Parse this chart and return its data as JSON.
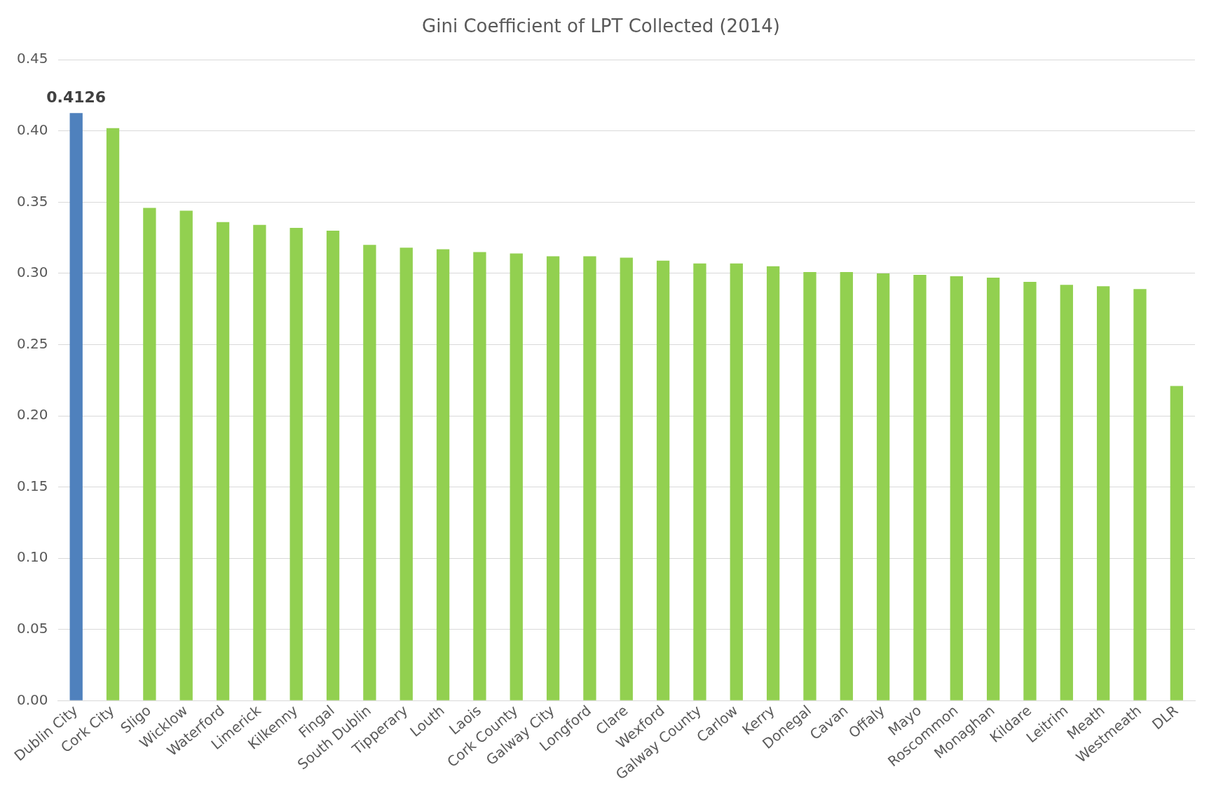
{
  "chart_data": {
    "type": "bar",
    "title": "Gini Coefficient of LPT Collected (2014)",
    "categories": [
      "Dublin City",
      "Cork City",
      "Sligo",
      "Wicklow",
      "Waterford",
      "Limerick",
      "Kilkenny",
      "Fingal",
      "South Dublin",
      "Tipperary",
      "Louth",
      "Laois",
      "Cork County",
      "Galway City",
      "Longford",
      "Clare",
      "Wexford",
      "Galway County",
      "Carlow",
      "Kerry",
      "Donegal",
      "Cavan",
      "Offaly",
      "Mayo",
      "Roscommon",
      "Monaghan",
      "Kildare",
      "Leitrim",
      "Meath",
      "Westmeath",
      "DLR"
    ],
    "values": [
      0.4126,
      0.402,
      0.346,
      0.344,
      0.336,
      0.334,
      0.332,
      0.33,
      0.32,
      0.318,
      0.317,
      0.315,
      0.314,
      0.312,
      0.312,
      0.311,
      0.309,
      0.307,
      0.307,
      0.305,
      0.301,
      0.301,
      0.3,
      0.299,
      0.298,
      0.297,
      0.294,
      0.292,
      0.291,
      0.289,
      0.221
    ],
    "colors": [
      "#4f81bd",
      "#92d050",
      "#92d050",
      "#92d050",
      "#92d050",
      "#92d050",
      "#92d050",
      "#92d050",
      "#92d050",
      "#92d050",
      "#92d050",
      "#92d050",
      "#92d050",
      "#92d050",
      "#92d050",
      "#92d050",
      "#92d050",
      "#92d050",
      "#92d050",
      "#92d050",
      "#92d050",
      "#92d050",
      "#92d050",
      "#92d050",
      "#92d050",
      "#92d050",
      "#92d050",
      "#92d050",
      "#92d050",
      "#92d050",
      "#92d050"
    ],
    "value_labels": [
      "0.4126",
      null,
      null,
      null,
      null,
      null,
      null,
      null,
      null,
      null,
      null,
      null,
      null,
      null,
      null,
      null,
      null,
      null,
      null,
      null,
      null,
      null,
      null,
      null,
      null,
      null,
      null,
      null,
      null,
      null,
      null
    ],
    "ylim": [
      0,
      0.45
    ],
    "yticks": [
      {
        "value": 0,
        "label": "0.00"
      },
      {
        "value": 0.05,
        "label": "0.05"
      },
      {
        "value": 0.1,
        "label": "0.10"
      },
      {
        "value": 0.15,
        "label": "0.15"
      },
      {
        "value": 0.2,
        "label": "0.20"
      },
      {
        "value": 0.25,
        "label": "0.25"
      },
      {
        "value": 0.3,
        "label": "0.30"
      },
      {
        "value": 0.35,
        "label": "0.35"
      },
      {
        "value": 0.4,
        "label": "0.40"
      },
      {
        "value": 0.45,
        "label": "0.45"
      }
    ],
    "grid": "y",
    "legend": false
  }
}
